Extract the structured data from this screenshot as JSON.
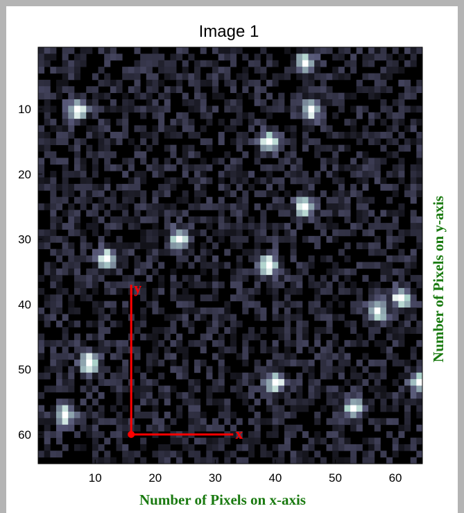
{
  "chart_data": {
    "type": "heatmap",
    "title": "Image 1",
    "xlabel": "Number of Pixels on x-axis",
    "ylabel": "Number of Pixels on y-axis",
    "xlim": [
      0.5,
      64.5
    ],
    "ylim": [
      0.5,
      64.5
    ],
    "y_reversed": true,
    "xticks": [
      10,
      20,
      30,
      40,
      50,
      60
    ],
    "yticks": [
      10,
      20,
      30,
      40,
      50,
      60
    ],
    "colormap": "bone",
    "grid": false,
    "stars": [
      {
        "x": 45,
        "y": 3
      },
      {
        "x": 7,
        "y": 10
      },
      {
        "x": 46,
        "y": 10
      },
      {
        "x": 39,
        "y": 15
      },
      {
        "x": 45,
        "y": 25
      },
      {
        "x": 24,
        "y": 30
      },
      {
        "x": 12,
        "y": 33
      },
      {
        "x": 39,
        "y": 34
      },
      {
        "x": 61,
        "y": 39
      },
      {
        "x": 57,
        "y": 41
      },
      {
        "x": 9,
        "y": 49
      },
      {
        "x": 40,
        "y": 52
      },
      {
        "x": 64,
        "y": 52
      },
      {
        "x": 53,
        "y": 56
      },
      {
        "x": 5,
        "y": 57
      }
    ],
    "annotations": {
      "axes_origin": {
        "x": 16,
        "y": 60
      },
      "x_arrow_end": {
        "x": 33,
        "y": 60
      },
      "y_arrow_end": {
        "x": 16,
        "y": 37
      },
      "x_label": "x",
      "y_label": "y",
      "color": "#ff0000"
    },
    "axis_label_color": "#1a7a10"
  }
}
